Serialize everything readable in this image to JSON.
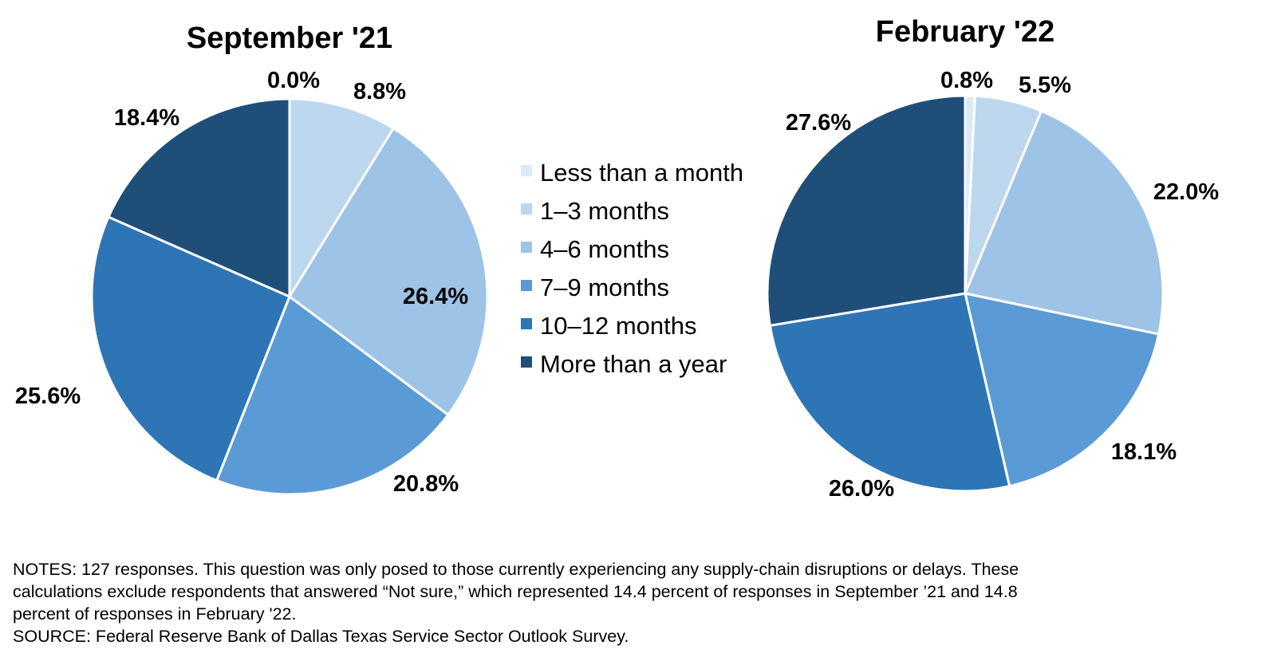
{
  "chart_data": [
    {
      "type": "pie",
      "title": "September '21",
      "categories": [
        "Less than a month",
        "1–3 months",
        "4–6 months",
        "7–9 months",
        "10–12 months",
        "More than a year"
      ],
      "values": [
        0.0,
        8.8,
        26.4,
        20.8,
        25.6,
        18.4
      ],
      "labels": [
        "0.0%",
        "8.8%",
        "26.4%",
        "20.8%",
        "25.6%",
        "18.4%"
      ],
      "start_angle_deg": 0,
      "direction": "clockwise"
    },
    {
      "type": "pie",
      "title": "February '22",
      "categories": [
        "Less than a month",
        "1–3 months",
        "4–6 months",
        "7–9 months",
        "10–12 months",
        "More than a year"
      ],
      "values": [
        0.8,
        5.5,
        22.0,
        18.1,
        26.0,
        27.6
      ],
      "labels": [
        "0.8%",
        "5.5%",
        "22.0%",
        "18.1%",
        "26.0%",
        "27.6%"
      ],
      "start_angle_deg": 0,
      "direction": "clockwise"
    }
  ],
  "legend": {
    "placement": "center",
    "items": [
      {
        "label": "Less than a month",
        "color": "#DCE9F6"
      },
      {
        "label": "1–3 months",
        "color": "#BDD7EE"
      },
      {
        "label": "4–6 months",
        "color": "#9DC3E6"
      },
      {
        "label": "7–9 months",
        "color": "#5B9BD5"
      },
      {
        "label": "10–12 months",
        "color": "#2E75B6"
      },
      {
        "label": "More than a year",
        "color": "#1F4E79"
      }
    ]
  },
  "notes": {
    "line1": "NOTES: 127 responses. This question was only posed to those currently experiencing any supply-chain disruptions or delays.  These",
    "line2": "calculations exclude respondents that answered “Not sure,” which represented 14.4 percent of responses in September ’21 and 14.8",
    "line3": "percent of responses in February '22.",
    "source": "SOURCE: Federal Reserve Bank of Dallas Texas Service Sector Outlook Survey."
  }
}
